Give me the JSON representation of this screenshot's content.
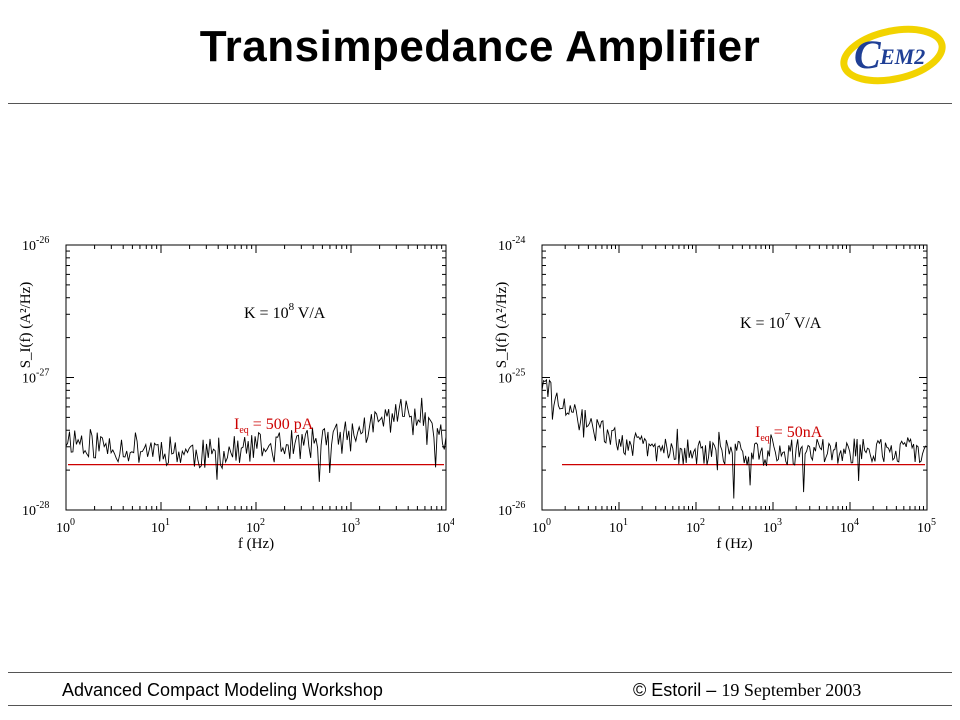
{
  "slide": {
    "title": "Transimpedance Amplifier",
    "footer_left": "Advanced Compact Modeling Workshop",
    "footer_right_copyright": "© Estoril –",
    "footer_right_date": "19 September 2003",
    "logo_text": "EM2",
    "logo_letter": "C"
  },
  "colors": {
    "logo_yellow": "#f2d300",
    "logo_blue": "#1f3f95",
    "reference_line": "#cc0000",
    "annotation_red": "#cc0000"
  },
  "chart_data": [
    {
      "type": "line",
      "scale": "log-log",
      "xlabel": "f (Hz)",
      "ylabel": "S_I(f) (A²/Hz)",
      "x_range": [
        1,
        10000
      ],
      "y_range": [
        1e-28,
        1e-26
      ],
      "x_ticks": [
        {
          "base": "10",
          "exp": "0"
        },
        {
          "base": "10",
          "exp": "1"
        },
        {
          "base": "10",
          "exp": "2"
        },
        {
          "base": "10",
          "exp": "3"
        },
        {
          "base": "10",
          "exp": "4"
        }
      ],
      "y_ticks": [
        {
          "base": "10",
          "exp": "-26"
        },
        {
          "base": "10",
          "exp": "-27"
        },
        {
          "base": "10",
          "exp": "-28"
        }
      ],
      "annotation_gain": {
        "prefix": "K = 10",
        "exp": "8",
        "suffix": " V/A"
      },
      "annotation_ieq": {
        "label": "I",
        "sub": "eq",
        "value": " = 500 pA"
      },
      "reference_level": 2.2e-28,
      "series": [
        {
          "trend": [
            [
              1,
              3.5e-28
            ],
            [
              3,
              3e-28
            ],
            [
              10,
              2.9e-28
            ],
            [
              30,
              2.6e-28
            ],
            [
              100,
              2.9e-28
            ],
            [
              300,
              3.1e-28
            ],
            [
              1000,
              3.6e-28
            ],
            [
              2000,
              4.6e-28
            ],
            [
              3000,
              5.3e-28
            ],
            [
              5000,
              5.7e-28
            ],
            [
              7000,
              4.6e-28
            ],
            [
              10000,
              3.2e-28
            ]
          ],
          "noise_amplitude": 0.12,
          "points": 220,
          "seed": 11
        }
      ]
    },
    {
      "type": "line",
      "scale": "log-log",
      "xlabel": "f (Hz)",
      "ylabel": "S_I(f) (A²/Hz)",
      "x_range": [
        1,
        100000
      ],
      "y_range": [
        1e-26,
        1e-24
      ],
      "x_ticks": [
        {
          "base": "10",
          "exp": "0"
        },
        {
          "base": "10",
          "exp": "1"
        },
        {
          "base": "10",
          "exp": "2"
        },
        {
          "base": "10",
          "exp": "3"
        },
        {
          "base": "10",
          "exp": "4"
        },
        {
          "base": "10",
          "exp": "5"
        }
      ],
      "y_ticks": [
        {
          "base": "10",
          "exp": "-24"
        },
        {
          "base": "10",
          "exp": "-25"
        },
        {
          "base": "10",
          "exp": "-26"
        }
      ],
      "annotation_gain": {
        "prefix": "K = 10",
        "exp": "7",
        "suffix": " V/A"
      },
      "annotation_ieq": {
        "label": "I",
        "sub": "eq",
        "value": " = 50nA"
      },
      "reference_level": 2.2e-26,
      "series": [
        {
          "trend": [
            [
              1,
              9e-26
            ],
            [
              1.3,
              7.5e-26
            ],
            [
              2,
              5.5e-26
            ],
            [
              3,
              5e-26
            ],
            [
              5,
              4e-26
            ],
            [
              10,
              3.4e-26
            ],
            [
              20,
              3e-26
            ],
            [
              50,
              2.8e-26
            ],
            [
              100,
              2.7e-26
            ],
            [
              1000,
              2.7e-26
            ],
            [
              10000,
              2.8e-26
            ],
            [
              100000,
              2.8e-26
            ]
          ],
          "noise_amplitude": 0.1,
          "points": 260,
          "seed": 29
        }
      ]
    }
  ]
}
